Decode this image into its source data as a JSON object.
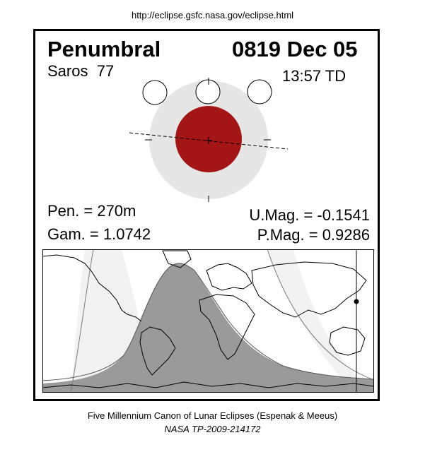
{
  "source_url": "http://eclipse.gsfc.nasa.gov/eclipse.html",
  "eclipse": {
    "type": "Penumbral",
    "date": "0819 Dec 05",
    "saros_label": "Saros",
    "saros_number": "77",
    "td_time": "13:57 TD",
    "penumbral_duration": "Pen. = 270m",
    "gamma": "Gam. = 1.0742",
    "umbral_magnitude": "U.Mag. = -0.1541",
    "penumbral_magnitude": "P.Mag. = 0.9286"
  },
  "colors": {
    "umbra": "#a41515",
    "penumbra": "#e6e6e6",
    "map_shadow": "#9a9a9a",
    "map_night_edge": "#f2f2f2"
  },
  "footer": {
    "line1": "Five Millennium Canon of Lunar Eclipses (Espenak & Meeus)",
    "line2": "NASA TP-2009-214172"
  }
}
